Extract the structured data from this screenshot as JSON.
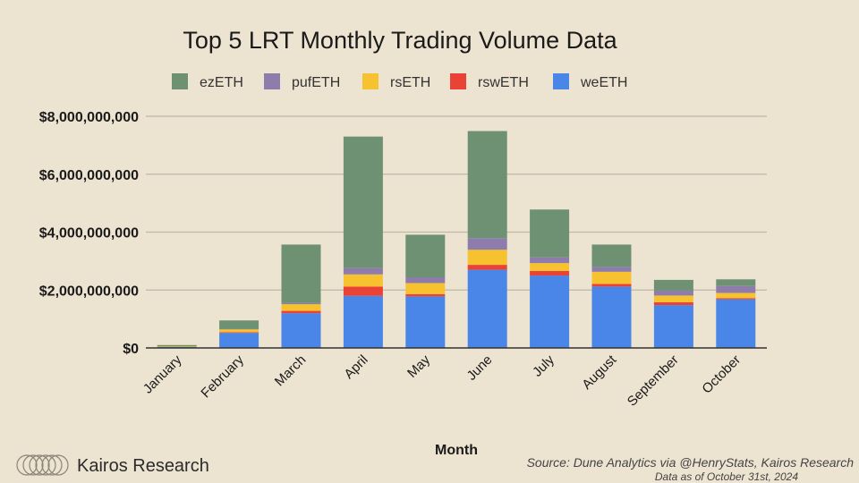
{
  "chart_data": {
    "type": "bar",
    "stacked": true,
    "title": "Top 5 LRT Monthly Trading Volume Data",
    "xlabel": "Month",
    "ylabel": "",
    "ylim": [
      0,
      8000000000
    ],
    "yticks": [
      0,
      2000000000,
      4000000000,
      6000000000,
      8000000000
    ],
    "ytick_labels": [
      "$0",
      "$2,000,000,000",
      "$4,000,000,000",
      "$6,000,000,000",
      "$8,000,000,000"
    ],
    "grid": true,
    "legend_position": "top",
    "categories": [
      "January",
      "February",
      "March",
      "April",
      "May",
      "June",
      "July",
      "August",
      "September",
      "October"
    ],
    "series": [
      {
        "name": "weETH",
        "color": "#4a86e8",
        "values": [
          30000000,
          520000000,
          1200000000,
          1800000000,
          1780000000,
          2700000000,
          2500000000,
          2120000000,
          1480000000,
          1680000000
        ]
      },
      {
        "name": "rswETH",
        "color": "#ea4335",
        "values": [
          0,
          20000000,
          80000000,
          320000000,
          80000000,
          170000000,
          160000000,
          90000000,
          100000000,
          40000000
        ]
      },
      {
        "name": "rsETH",
        "color": "#f6c22f",
        "values": [
          20000000,
          100000000,
          230000000,
          420000000,
          380000000,
          520000000,
          270000000,
          420000000,
          230000000,
          180000000
        ]
      },
      {
        "name": "pufETH",
        "color": "#8e7cac",
        "values": [
          0,
          10000000,
          40000000,
          220000000,
          200000000,
          400000000,
          200000000,
          170000000,
          170000000,
          240000000
        ]
      },
      {
        "name": "ezETH",
        "color": "#6f9173",
        "values": [
          50000000,
          300000000,
          2020000000,
          4540000000,
          1470000000,
          3700000000,
          1650000000,
          770000000,
          370000000,
          230000000
        ]
      }
    ],
    "legend_order": [
      "ezETH",
      "pufETH",
      "rsETH",
      "rswETH",
      "weETH"
    ]
  },
  "footer": {
    "brand": "Kairos Research",
    "source": "Source: Dune Analytics via @HenryStats, Kairos Research",
    "as_of": "Data as of October 31st, 2024"
  },
  "colors": {
    "background": "#ede3d1",
    "gridline": "#bfb6a6",
    "axis": "#333333"
  }
}
